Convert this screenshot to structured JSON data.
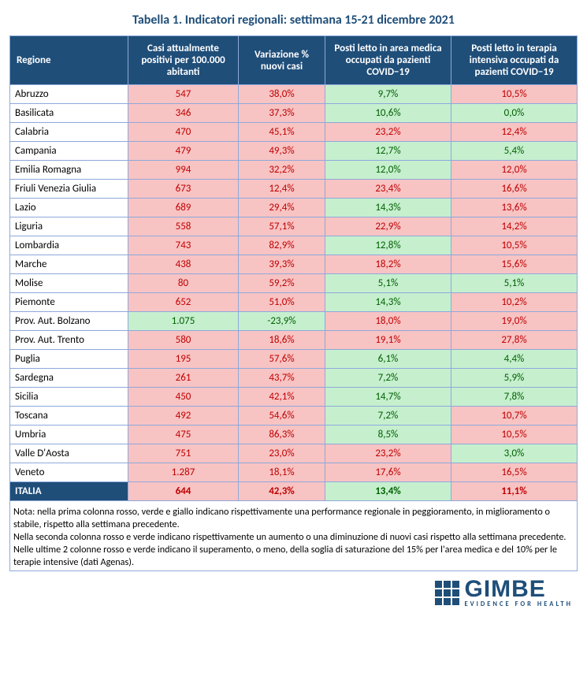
{
  "title": "Tabella 1. Indicatori regionali: settimana 15-21 dicembre 2021",
  "columns": [
    "Regione",
    "Casi attualmente positivi per 100.000 abitanti",
    "Variazione % nuovi casi",
    "Posti letto in area medica occupati da pazienti COVID−19",
    "Posti letto in terapia intensiva occupati da pazienti COVID−19"
  ],
  "rows": [
    {
      "region": "Abruzzo",
      "c1": {
        "v": "547",
        "cls": "red"
      },
      "c2": {
        "v": "38,0%",
        "cls": "red"
      },
      "c3": {
        "v": "9,7%",
        "cls": "green"
      },
      "c4": {
        "v": "10,5%",
        "cls": "red"
      }
    },
    {
      "region": "Basilicata",
      "c1": {
        "v": "346",
        "cls": "red"
      },
      "c2": {
        "v": "37,3%",
        "cls": "red"
      },
      "c3": {
        "v": "10,6%",
        "cls": "green"
      },
      "c4": {
        "v": "0,0%",
        "cls": "green"
      }
    },
    {
      "region": "Calabria",
      "c1": {
        "v": "470",
        "cls": "red"
      },
      "c2": {
        "v": "45,1%",
        "cls": "red"
      },
      "c3": {
        "v": "23,2%",
        "cls": "red"
      },
      "c4": {
        "v": "12,4%",
        "cls": "red"
      }
    },
    {
      "region": "Campania",
      "c1": {
        "v": "479",
        "cls": "red"
      },
      "c2": {
        "v": "49,3%",
        "cls": "red"
      },
      "c3": {
        "v": "12,7%",
        "cls": "green"
      },
      "c4": {
        "v": "5,4%",
        "cls": "green"
      }
    },
    {
      "region": "Emilia Romagna",
      "c1": {
        "v": "994",
        "cls": "red"
      },
      "c2": {
        "v": "32,2%",
        "cls": "red"
      },
      "c3": {
        "v": "12,0%",
        "cls": "green"
      },
      "c4": {
        "v": "12,0%",
        "cls": "red"
      }
    },
    {
      "region": "Friuli Venezia Giulia",
      "c1": {
        "v": "673",
        "cls": "red"
      },
      "c2": {
        "v": "12,4%",
        "cls": "red"
      },
      "c3": {
        "v": "23,4%",
        "cls": "red"
      },
      "c4": {
        "v": "16,6%",
        "cls": "red"
      }
    },
    {
      "region": "Lazio",
      "c1": {
        "v": "689",
        "cls": "red"
      },
      "c2": {
        "v": "29,4%",
        "cls": "red"
      },
      "c3": {
        "v": "14,3%",
        "cls": "green"
      },
      "c4": {
        "v": "13,6%",
        "cls": "red"
      }
    },
    {
      "region": "Liguria",
      "c1": {
        "v": "558",
        "cls": "red"
      },
      "c2": {
        "v": "57,1%",
        "cls": "red"
      },
      "c3": {
        "v": "22,9%",
        "cls": "red"
      },
      "c4": {
        "v": "14,2%",
        "cls": "red"
      }
    },
    {
      "region": "Lombardia",
      "c1": {
        "v": "743",
        "cls": "red"
      },
      "c2": {
        "v": "82,9%",
        "cls": "red"
      },
      "c3": {
        "v": "12,8%",
        "cls": "green"
      },
      "c4": {
        "v": "10,5%",
        "cls": "red"
      }
    },
    {
      "region": "Marche",
      "c1": {
        "v": "438",
        "cls": "red"
      },
      "c2": {
        "v": "39,3%",
        "cls": "red"
      },
      "c3": {
        "v": "18,2%",
        "cls": "red"
      },
      "c4": {
        "v": "15,6%",
        "cls": "red"
      }
    },
    {
      "region": "Molise",
      "c1": {
        "v": "80",
        "cls": "red"
      },
      "c2": {
        "v": "59,2%",
        "cls": "red"
      },
      "c3": {
        "v": "5,1%",
        "cls": "green"
      },
      "c4": {
        "v": "5,1%",
        "cls": "green"
      }
    },
    {
      "region": "Piemonte",
      "c1": {
        "v": "652",
        "cls": "red"
      },
      "c2": {
        "v": "51,0%",
        "cls": "red"
      },
      "c3": {
        "v": "14,3%",
        "cls": "green"
      },
      "c4": {
        "v": "10,2%",
        "cls": "red"
      }
    },
    {
      "region": "Prov. Aut. Bolzano",
      "c1": {
        "v": "1.075",
        "cls": "green"
      },
      "c2": {
        "v": "-23,9%",
        "cls": "green"
      },
      "c3": {
        "v": "18,0%",
        "cls": "red"
      },
      "c4": {
        "v": "19,0%",
        "cls": "red"
      }
    },
    {
      "region": "Prov. Aut. Trento",
      "c1": {
        "v": "580",
        "cls": "red"
      },
      "c2": {
        "v": "18,6%",
        "cls": "red"
      },
      "c3": {
        "v": "19,1%",
        "cls": "red"
      },
      "c4": {
        "v": "27,8%",
        "cls": "red"
      }
    },
    {
      "region": "Puglia",
      "c1": {
        "v": "195",
        "cls": "red"
      },
      "c2": {
        "v": "57,6%",
        "cls": "red"
      },
      "c3": {
        "v": "6,1%",
        "cls": "green"
      },
      "c4": {
        "v": "4,4%",
        "cls": "green"
      }
    },
    {
      "region": "Sardegna",
      "c1": {
        "v": "261",
        "cls": "red"
      },
      "c2": {
        "v": "43,7%",
        "cls": "red"
      },
      "c3": {
        "v": "7,2%",
        "cls": "green"
      },
      "c4": {
        "v": "5,9%",
        "cls": "green"
      }
    },
    {
      "region": "Sicilia",
      "c1": {
        "v": "450",
        "cls": "red"
      },
      "c2": {
        "v": "42,1%",
        "cls": "red"
      },
      "c3": {
        "v": "14,7%",
        "cls": "green"
      },
      "c4": {
        "v": "7,8%",
        "cls": "green"
      }
    },
    {
      "region": "Toscana",
      "c1": {
        "v": "492",
        "cls": "red"
      },
      "c2": {
        "v": "54,6%",
        "cls": "red"
      },
      "c3": {
        "v": "7,2%",
        "cls": "green"
      },
      "c4": {
        "v": "10,7%",
        "cls": "red"
      }
    },
    {
      "region": "Umbria",
      "c1": {
        "v": "475",
        "cls": "red"
      },
      "c2": {
        "v": "86,3%",
        "cls": "red"
      },
      "c3": {
        "v": "8,5%",
        "cls": "green"
      },
      "c4": {
        "v": "10,5%",
        "cls": "red"
      }
    },
    {
      "region": "Valle D'Aosta",
      "c1": {
        "v": "751",
        "cls": "red"
      },
      "c2": {
        "v": "23,0%",
        "cls": "red"
      },
      "c3": {
        "v": "23,2%",
        "cls": "red"
      },
      "c4": {
        "v": "3,0%",
        "cls": "green"
      }
    },
    {
      "region": "Veneto",
      "c1": {
        "v": "1.287",
        "cls": "red"
      },
      "c2": {
        "v": "18,1%",
        "cls": "red"
      },
      "c3": {
        "v": "17,6%",
        "cls": "red"
      },
      "c4": {
        "v": "16,5%",
        "cls": "red"
      }
    }
  ],
  "total": {
    "region": "ITALIA",
    "c1": {
      "v": "644",
      "cls": "red"
    },
    "c2": {
      "v": "42,3%",
      "cls": "red"
    },
    "c3": {
      "v": "13,4%",
      "cls": "green"
    },
    "c4": {
      "v": "11,1%",
      "cls": "red"
    }
  },
  "note": "Nota: nella prima colonna rosso, verde e giallo indicano rispettivamente una performance regionale in peggioramento, in miglioramento o stabile, rispetto alla settimana precedente.\nNella seconda colonna rosso e verde indicano rispettivamente un aumento o una diminuzione di nuovi casi rispetto alla settimana precedente.\nNelle ultime 2 colonne rosso e verde indicano il superamento, o meno, della soglia di saturazione del 15% per l'area medica e del 10% per le terapie intensive (dati Agenas).",
  "logo": {
    "main": "GIMBE",
    "sub": "EVIDENCE FOR HEALTH"
  },
  "colors": {
    "header_bg": "#1f4e79",
    "border": "#8ea9db",
    "red_bg": "#f8c3c3",
    "red_fg": "#c00000",
    "green_bg": "#c6efce",
    "green_fg": "#006100"
  }
}
